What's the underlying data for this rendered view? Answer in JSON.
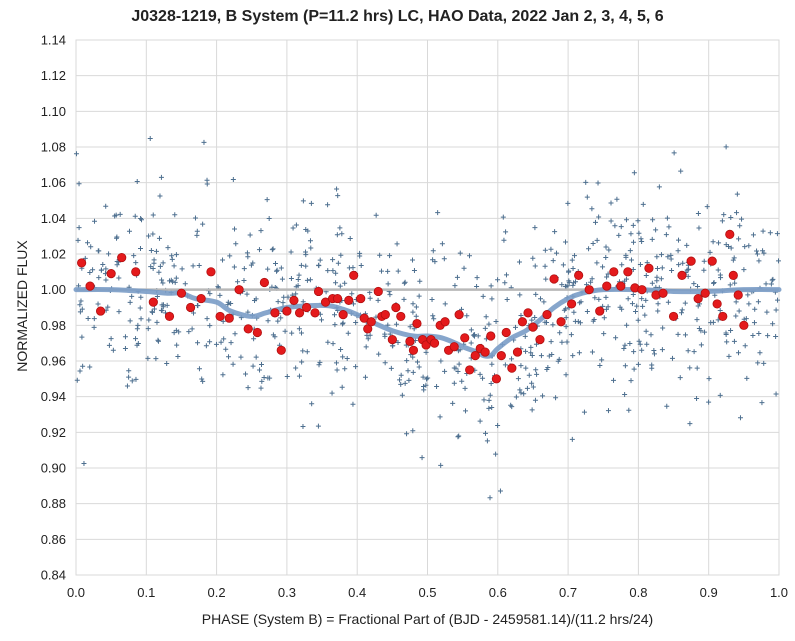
{
  "chart_data": {
    "type": "scatter",
    "title": "J0328-1219, B System (P=11.2 hrs) LC, HAO Data, 2022 Jan 2, 3, 4, 5, 6",
    "xlabel": "PHASE (System B) = Fractional Part of (BJD - 2459581.14)/(11.2 hrs/24)",
    "ylabel": "NORMALIZED FLUX",
    "xlim": [
      0.0,
      1.0
    ],
    "ylim": [
      0.84,
      1.14
    ],
    "x_ticks": [
      "0.0",
      "0.1",
      "0.2",
      "0.3",
      "0.4",
      "0.5",
      "0.6",
      "0.7",
      "0.8",
      "0.9",
      "1.0"
    ],
    "y_ticks": [
      "0.84",
      "0.86",
      "0.88",
      "0.90",
      "0.92",
      "0.94",
      "0.96",
      "0.98",
      "1.00",
      "1.02",
      "1.04",
      "1.06",
      "1.08",
      "1.10",
      "1.12",
      "1.14"
    ],
    "grid": true,
    "colors": {
      "raw": "#4d6f8f",
      "binned": "#e41a1c",
      "binned_edge": "#b01010",
      "model": "#7a9cc6",
      "baseline": "#b8b8b8",
      "grid": "#d9d9d9"
    },
    "baseline": 1.0,
    "series": [
      {
        "marker": "red-circle",
        "x": [
          0.008,
          0.02,
          0.035,
          0.05,
          0.065,
          0.085,
          0.11,
          0.133,
          0.15,
          0.163,
          0.178,
          0.192,
          0.205,
          0.218,
          0.232,
          0.245,
          0.258,
          0.268,
          0.283,
          0.292,
          0.3,
          0.31,
          0.318,
          0.328,
          0.34,
          0.345,
          0.355,
          0.365,
          0.372,
          0.38,
          0.388,
          0.395,
          0.405,
          0.41,
          0.415,
          0.42,
          0.43,
          0.435,
          0.44,
          0.45,
          0.455,
          0.462,
          0.475,
          0.48,
          0.485,
          0.493,
          0.498,
          0.505,
          0.51,
          0.518,
          0.525,
          0.53,
          0.538,
          0.545,
          0.553,
          0.56,
          0.568,
          0.575,
          0.582,
          0.59,
          0.598,
          0.605,
          0.612,
          0.62,
          0.628,
          0.635,
          0.643,
          0.65,
          0.66,
          0.67,
          0.68,
          0.69,
          0.705,
          0.715,
          0.73,
          0.745,
          0.755,
          0.765,
          0.775,
          0.785,
          0.795,
          0.805,
          0.815,
          0.825,
          0.835,
          0.85,
          0.862,
          0.875,
          0.885,
          0.895,
          0.905,
          0.912,
          0.92,
          0.93,
          0.935,
          0.942,
          0.95
        ],
        "y": [
          1.015,
          1.002,
          0.988,
          1.009,
          1.018,
          1.01,
          0.993,
          0.985,
          0.998,
          0.99,
          0.995,
          1.01,
          0.985,
          0.984,
          1.0,
          0.978,
          0.976,
          1.004,
          0.987,
          0.966,
          0.988,
          0.994,
          0.987,
          0.99,
          0.987,
          0.999,
          0.993,
          0.995,
          0.995,
          0.986,
          0.994,
          1.008,
          0.995,
          0.984,
          0.978,
          0.982,
          0.999,
          0.985,
          0.986,
          0.972,
          0.99,
          0.985,
          0.971,
          0.966,
          0.981,
          0.972,
          0.969,
          0.972,
          0.97,
          0.98,
          0.982,
          0.966,
          0.968,
          0.986,
          0.973,
          0.955,
          0.963,
          0.967,
          0.965,
          0.974,
          0.95,
          0.963,
          0.976,
          0.956,
          0.965,
          0.982,
          0.987,
          0.979,
          0.972,
          0.986,
          1.006,
          0.982,
          0.992,
          1.008,
          1.0,
          0.988,
          1.002,
          1.01,
          1.002,
          1.01,
          1.001,
          1.0,
          1.012,
          0.997,
          0.998,
          0.985,
          1.008,
          1.016,
          0.995,
          0.998,
          1.016,
          0.992,
          0.985,
          1.031,
          1.008,
          0.997,
          0.98
        ]
      },
      {
        "marker": "model-curve",
        "x": [
          0.0,
          0.05,
          0.1,
          0.13,
          0.15,
          0.17,
          0.2,
          0.22,
          0.25,
          0.27,
          0.3,
          0.33,
          0.36,
          0.38,
          0.4,
          0.42,
          0.45,
          0.48,
          0.5,
          0.52,
          0.54,
          0.55,
          0.57,
          0.58,
          0.59,
          0.6,
          0.62,
          0.64,
          0.66,
          0.68,
          0.7,
          0.72,
          0.75,
          0.8,
          0.85,
          0.9,
          0.95,
          1.0
        ],
        "y": [
          1.0,
          1.0,
          0.999,
          0.998,
          0.998,
          0.995,
          0.993,
          0.988,
          0.985,
          0.987,
          0.99,
          0.991,
          0.991,
          0.989,
          0.986,
          0.982,
          0.977,
          0.974,
          0.974,
          0.973,
          0.97,
          0.968,
          0.965,
          0.963,
          0.963,
          0.967,
          0.973,
          0.977,
          0.983,
          0.99,
          0.995,
          0.998,
          1.0,
          1.0,
          0.999,
          0.999,
          1.0,
          1.0
        ]
      }
    ]
  }
}
